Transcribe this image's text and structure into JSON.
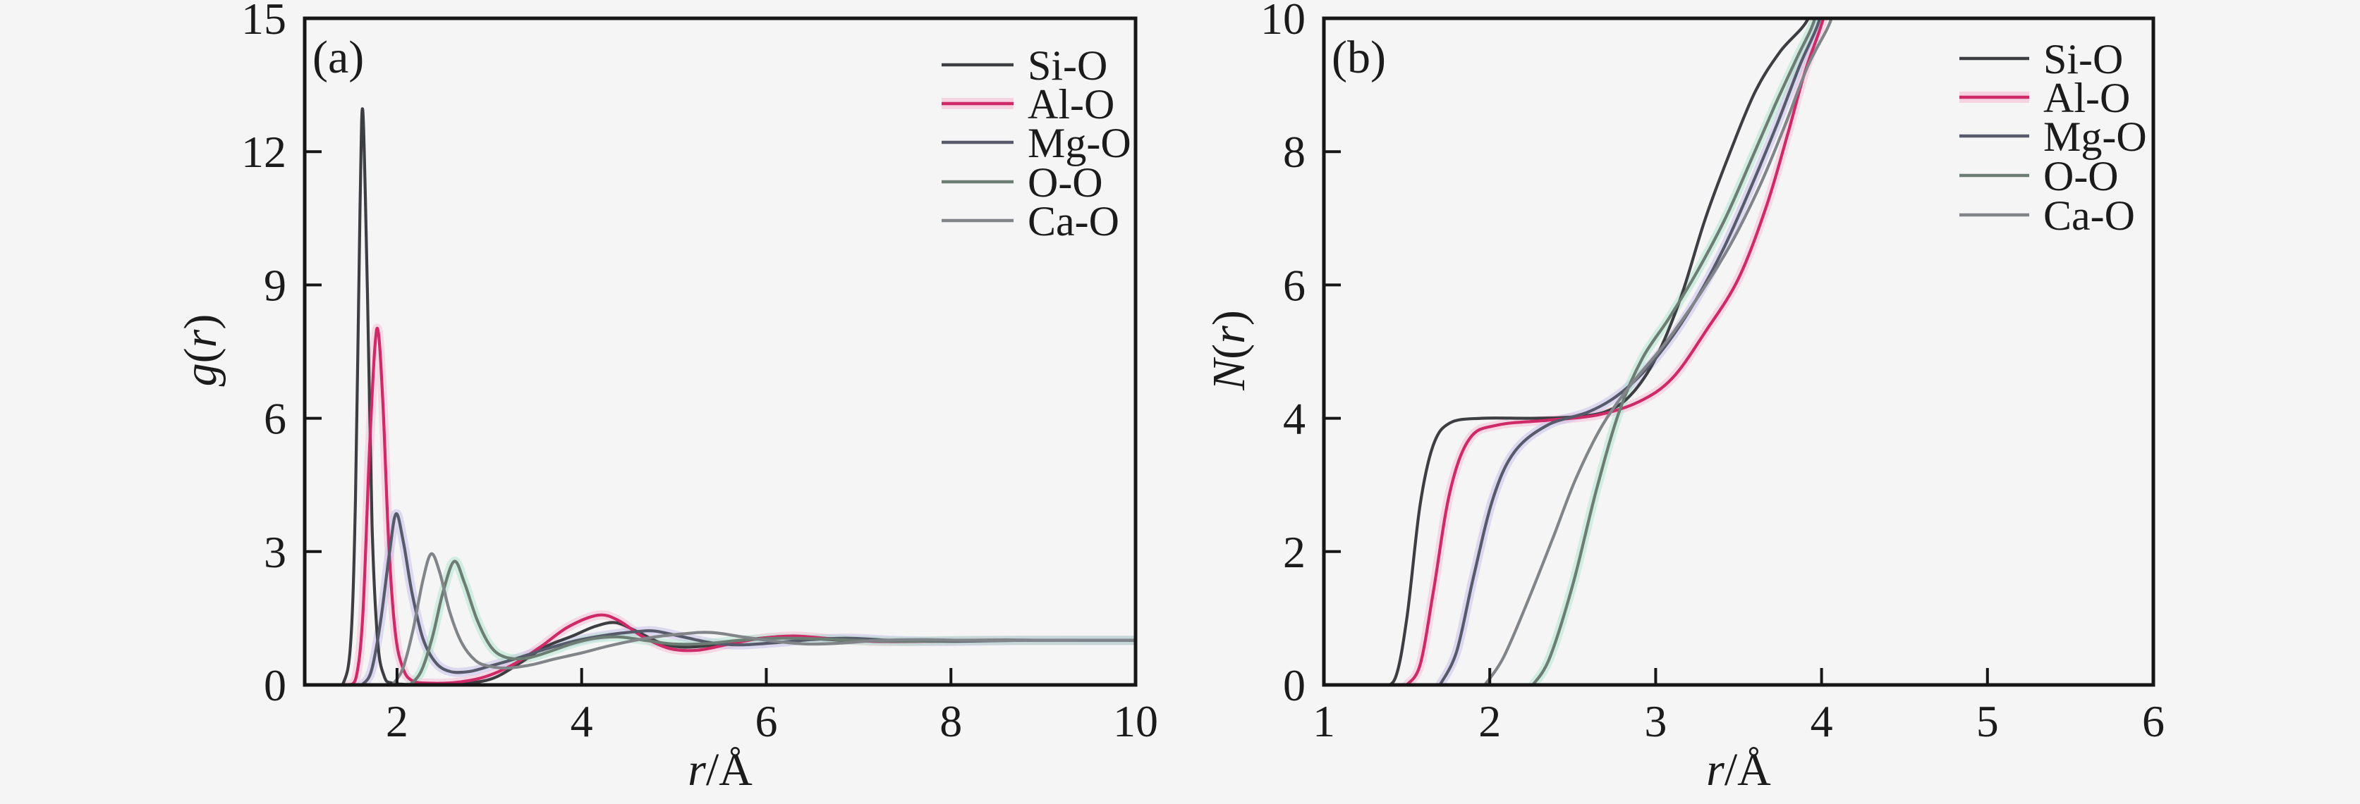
{
  "figure": {
    "background": "#f5f5f6",
    "frame_color": "#161616",
    "text_color": "#1b1b1b"
  },
  "chart_data": [
    {
      "panel_label": "(a)",
      "type": "line",
      "title": "",
      "xlabel": "r/Å",
      "ylabel": "g(r)",
      "xlabel_parts": [
        {
          "text": "r",
          "italic": true
        },
        {
          "text": "/Å",
          "italic": false
        }
      ],
      "ylabel_parts": [
        {
          "text": "g",
          "italic": true
        },
        {
          "text": "(",
          "italic": false
        },
        {
          "text": "r",
          "italic": true
        },
        {
          "text": ")",
          "italic": false
        }
      ],
      "xlim": [
        1,
        10
      ],
      "ylim": [
        0,
        15
      ],
      "xticks": [
        2,
        4,
        6,
        8,
        10
      ],
      "yticks": [
        0,
        3,
        6,
        9,
        12,
        15
      ],
      "grid": false,
      "legend_position": "top-right",
      "series": [
        {
          "name": "Si-O",
          "color": "#3d3e42",
          "glow": null,
          "points": [
            [
              1.3,
              0
            ],
            [
              1.42,
              0.05
            ],
            [
              1.5,
              1.0
            ],
            [
              1.55,
              4.2
            ],
            [
              1.6,
              10.8
            ],
            [
              1.63,
              12.9
            ],
            [
              1.68,
              8.8
            ],
            [
              1.73,
              3.6
            ],
            [
              1.79,
              1.0
            ],
            [
              1.86,
              0.2
            ],
            [
              1.95,
              0.04
            ],
            [
              2.2,
              0.01
            ],
            [
              2.6,
              0.02
            ],
            [
              3.0,
              0.12
            ],
            [
              3.3,
              0.45
            ],
            [
              3.6,
              0.85
            ],
            [
              3.9,
              1.1
            ],
            [
              4.15,
              1.32
            ],
            [
              4.37,
              1.4
            ],
            [
              4.6,
              1.2
            ],
            [
              4.85,
              0.95
            ],
            [
              5.1,
              0.85
            ],
            [
              5.45,
              0.9
            ],
            [
              5.8,
              1.02
            ],
            [
              6.2,
              1.08
            ],
            [
              6.6,
              1.03
            ],
            [
              7.0,
              0.99
            ],
            [
              7.5,
              0.98
            ],
            [
              8.0,
              1.0
            ],
            [
              8.6,
              1.01
            ],
            [
              9.3,
              1.0
            ],
            [
              10.0,
              1.0
            ]
          ]
        },
        {
          "name": "Al-O",
          "color": "#cf2a68",
          "glow": "#f7bcd4",
          "points": [
            [
              1.47,
              0
            ],
            [
              1.56,
              0.2
            ],
            [
              1.63,
              1.6
            ],
            [
              1.7,
              5.2
            ],
            [
              1.76,
              7.6
            ],
            [
              1.8,
              7.9
            ],
            [
              1.85,
              6.2
            ],
            [
              1.91,
              3.2
            ],
            [
              1.98,
              1.2
            ],
            [
              2.06,
              0.4
            ],
            [
              2.16,
              0.1
            ],
            [
              2.35,
              0.04
            ],
            [
              2.65,
              0.06
            ],
            [
              2.95,
              0.18
            ],
            [
              3.25,
              0.45
            ],
            [
              3.55,
              0.85
            ],
            [
              3.85,
              1.3
            ],
            [
              4.18,
              1.57
            ],
            [
              4.4,
              1.45
            ],
            [
              4.65,
              1.1
            ],
            [
              4.95,
              0.82
            ],
            [
              5.25,
              0.78
            ],
            [
              5.6,
              0.92
            ],
            [
              5.95,
              1.05
            ],
            [
              6.3,
              1.1
            ],
            [
              6.7,
              1.04
            ],
            [
              7.2,
              0.98
            ],
            [
              7.7,
              0.98
            ],
            [
              8.3,
              1.0
            ],
            [
              9.0,
              1.0
            ],
            [
              10.0,
              1.0
            ]
          ]
        },
        {
          "name": "Mg-O",
          "color": "#565a6b",
          "glow": "#c3bce8",
          "points": [
            [
              1.62,
              0
            ],
            [
              1.72,
              0.3
            ],
            [
              1.82,
              1.4
            ],
            [
              1.92,
              3.0
            ],
            [
              1.99,
              3.85
            ],
            [
              2.07,
              3.2
            ],
            [
              2.16,
              2.1
            ],
            [
              2.28,
              1.05
            ],
            [
              2.42,
              0.5
            ],
            [
              2.58,
              0.3
            ],
            [
              2.78,
              0.3
            ],
            [
              3.0,
              0.42
            ],
            [
              3.3,
              0.6
            ],
            [
              3.6,
              0.8
            ],
            [
              3.95,
              1.0
            ],
            [
              4.3,
              1.13
            ],
            [
              4.6,
              1.2
            ],
            [
              4.8,
              1.21
            ],
            [
              5.1,
              1.08
            ],
            [
              5.4,
              0.95
            ],
            [
              5.7,
              0.9
            ],
            [
              6.1,
              0.95
            ],
            [
              6.5,
              1.02
            ],
            [
              6.9,
              1.05
            ],
            [
              7.4,
              1.0
            ],
            [
              8.0,
              0.98
            ],
            [
              8.7,
              1.0
            ],
            [
              9.4,
              1.0
            ],
            [
              10.0,
              1.0
            ]
          ]
        },
        {
          "name": "O-O",
          "color": "#6c7d74",
          "glow": "#aee3cb",
          "points": [
            [
              2.14,
              0
            ],
            [
              2.26,
              0.3
            ],
            [
              2.38,
              1.05
            ],
            [
              2.5,
              2.1
            ],
            [
              2.62,
              2.78
            ],
            [
              2.73,
              2.3
            ],
            [
              2.87,
              1.45
            ],
            [
              3.02,
              0.85
            ],
            [
              3.18,
              0.62
            ],
            [
              3.4,
              0.6
            ],
            [
              3.65,
              0.75
            ],
            [
              3.9,
              0.93
            ],
            [
              4.15,
              1.05
            ],
            [
              4.4,
              1.08
            ],
            [
              4.7,
              1.0
            ],
            [
              5.0,
              0.92
            ],
            [
              5.35,
              0.93
            ],
            [
              5.7,
              1.0
            ],
            [
              6.1,
              1.05
            ],
            [
              6.5,
              1.04
            ],
            [
              7.0,
              1.0
            ],
            [
              7.5,
              0.98
            ],
            [
              8.1,
              1.0
            ],
            [
              8.8,
              1.0
            ],
            [
              9.5,
              1.0
            ],
            [
              10.0,
              1.0
            ]
          ]
        },
        {
          "name": "Ca-O",
          "color": "#818488",
          "glow": null,
          "points": [
            [
              1.95,
              0
            ],
            [
              2.06,
              0.35
            ],
            [
              2.17,
              1.2
            ],
            [
              2.28,
              2.35
            ],
            [
              2.37,
              2.95
            ],
            [
              2.46,
              2.55
            ],
            [
              2.57,
              1.65
            ],
            [
              2.7,
              0.95
            ],
            [
              2.85,
              0.55
            ],
            [
              3.0,
              0.42
            ],
            [
              3.2,
              0.38
            ],
            [
              3.45,
              0.45
            ],
            [
              3.7,
              0.58
            ],
            [
              4.0,
              0.72
            ],
            [
              4.3,
              0.88
            ],
            [
              4.7,
              1.05
            ],
            [
              5.1,
              1.15
            ],
            [
              5.4,
              1.18
            ],
            [
              5.75,
              1.08
            ],
            [
              6.1,
              0.98
            ],
            [
              6.45,
              0.92
            ],
            [
              6.8,
              0.94
            ],
            [
              7.2,
              1.0
            ],
            [
              7.7,
              1.02
            ],
            [
              8.2,
              1.0
            ],
            [
              9.0,
              1.0
            ],
            [
              10.0,
              1.0
            ]
          ]
        }
      ]
    },
    {
      "panel_label": "(b)",
      "type": "line",
      "title": "",
      "xlabel": "r/Å",
      "ylabel": "N(r)",
      "xlabel_parts": [
        {
          "text": "r",
          "italic": true
        },
        {
          "text": "/Å",
          "italic": false
        }
      ],
      "ylabel_parts": [
        {
          "text": "N",
          "italic": true
        },
        {
          "text": "(",
          "italic": false
        },
        {
          "text": "r",
          "italic": true
        },
        {
          "text": ")",
          "italic": false
        }
      ],
      "xlim": [
        1,
        6
      ],
      "ylim": [
        0,
        10
      ],
      "xticks": [
        1,
        2,
        3,
        4,
        5,
        6
      ],
      "yticks": [
        0,
        2,
        4,
        6,
        8,
        10
      ],
      "grid": false,
      "legend_position": "top-right",
      "series": [
        {
          "name": "Si-O",
          "color": "#3d3e42",
          "glow": null,
          "points": [
            [
              1.34,
              0
            ],
            [
              1.43,
              0.1
            ],
            [
              1.5,
              1.0
            ],
            [
              1.58,
              2.7
            ],
            [
              1.66,
              3.6
            ],
            [
              1.76,
              3.93
            ],
            [
              1.95,
              4.0
            ],
            [
              2.25,
              4.0
            ],
            [
              2.5,
              4.02
            ],
            [
              2.7,
              4.1
            ],
            [
              2.85,
              4.35
            ],
            [
              3.0,
              4.9
            ],
            [
              3.15,
              5.8
            ],
            [
              3.3,
              7.0
            ],
            [
              3.45,
              8.0
            ],
            [
              3.6,
              8.9
            ],
            [
              3.75,
              9.5
            ],
            [
              3.92,
              10.0
            ],
            [
              3.96,
              10.6
            ]
          ]
        },
        {
          "name": "Al-O",
          "color": "#cf2a68",
          "glow": "#f7bcd4",
          "points": [
            [
              1.5,
              0
            ],
            [
              1.58,
              0.3
            ],
            [
              1.66,
              1.4
            ],
            [
              1.76,
              2.9
            ],
            [
              1.88,
              3.7
            ],
            [
              2.05,
              3.9
            ],
            [
              2.35,
              3.97
            ],
            [
              2.65,
              4.05
            ],
            [
              2.9,
              4.25
            ],
            [
              3.1,
              4.6
            ],
            [
              3.3,
              5.3
            ],
            [
              3.5,
              6.1
            ],
            [
              3.67,
              7.2
            ],
            [
              3.8,
              8.3
            ],
            [
              3.9,
              9.2
            ],
            [
              4.01,
              10.0
            ],
            [
              4.04,
              10.6
            ]
          ]
        },
        {
          "name": "Mg-O",
          "color": "#565a6b",
          "glow": "#c3bce8",
          "points": [
            [
              1.7,
              0
            ],
            [
              1.8,
              0.5
            ],
            [
              1.9,
              1.6
            ],
            [
              2.02,
              2.8
            ],
            [
              2.15,
              3.5
            ],
            [
              2.35,
              3.9
            ],
            [
              2.6,
              4.1
            ],
            [
              2.8,
              4.4
            ],
            [
              3.0,
              4.9
            ],
            [
              3.2,
              5.6
            ],
            [
              3.4,
              6.5
            ],
            [
              3.58,
              7.5
            ],
            [
              3.73,
              8.4
            ],
            [
              3.87,
              9.3
            ],
            [
              3.99,
              10.0
            ],
            [
              4.02,
              10.6
            ]
          ]
        },
        {
          "name": "O-O",
          "color": "#6c7d74",
          "glow": "#aee3cb",
          "points": [
            [
              2.26,
              0
            ],
            [
              2.36,
              0.4
            ],
            [
              2.5,
              1.5
            ],
            [
              2.64,
              2.9
            ],
            [
              2.78,
              4.1
            ],
            [
              2.92,
              4.9
            ],
            [
              3.08,
              5.5
            ],
            [
              3.25,
              6.2
            ],
            [
              3.42,
              7.0
            ],
            [
              3.58,
              7.9
            ],
            [
              3.72,
              8.7
            ],
            [
              3.85,
              9.4
            ],
            [
              3.96,
              10.0
            ],
            [
              3.99,
              10.6
            ]
          ]
        },
        {
          "name": "Ca-O",
          "color": "#818488",
          "glow": null,
          "points": [
            [
              1.97,
              0
            ],
            [
              2.08,
              0.4
            ],
            [
              2.22,
              1.2
            ],
            [
              2.38,
              2.2
            ],
            [
              2.52,
              3.1
            ],
            [
              2.68,
              3.9
            ],
            [
              2.85,
              4.5
            ],
            [
              3.05,
              5.1
            ],
            [
              3.25,
              5.8
            ],
            [
              3.45,
              6.6
            ],
            [
              3.63,
              7.5
            ],
            [
              3.78,
              8.4
            ],
            [
              3.92,
              9.3
            ],
            [
              4.06,
              10.0
            ],
            [
              4.09,
              10.6
            ]
          ]
        }
      ]
    }
  ]
}
